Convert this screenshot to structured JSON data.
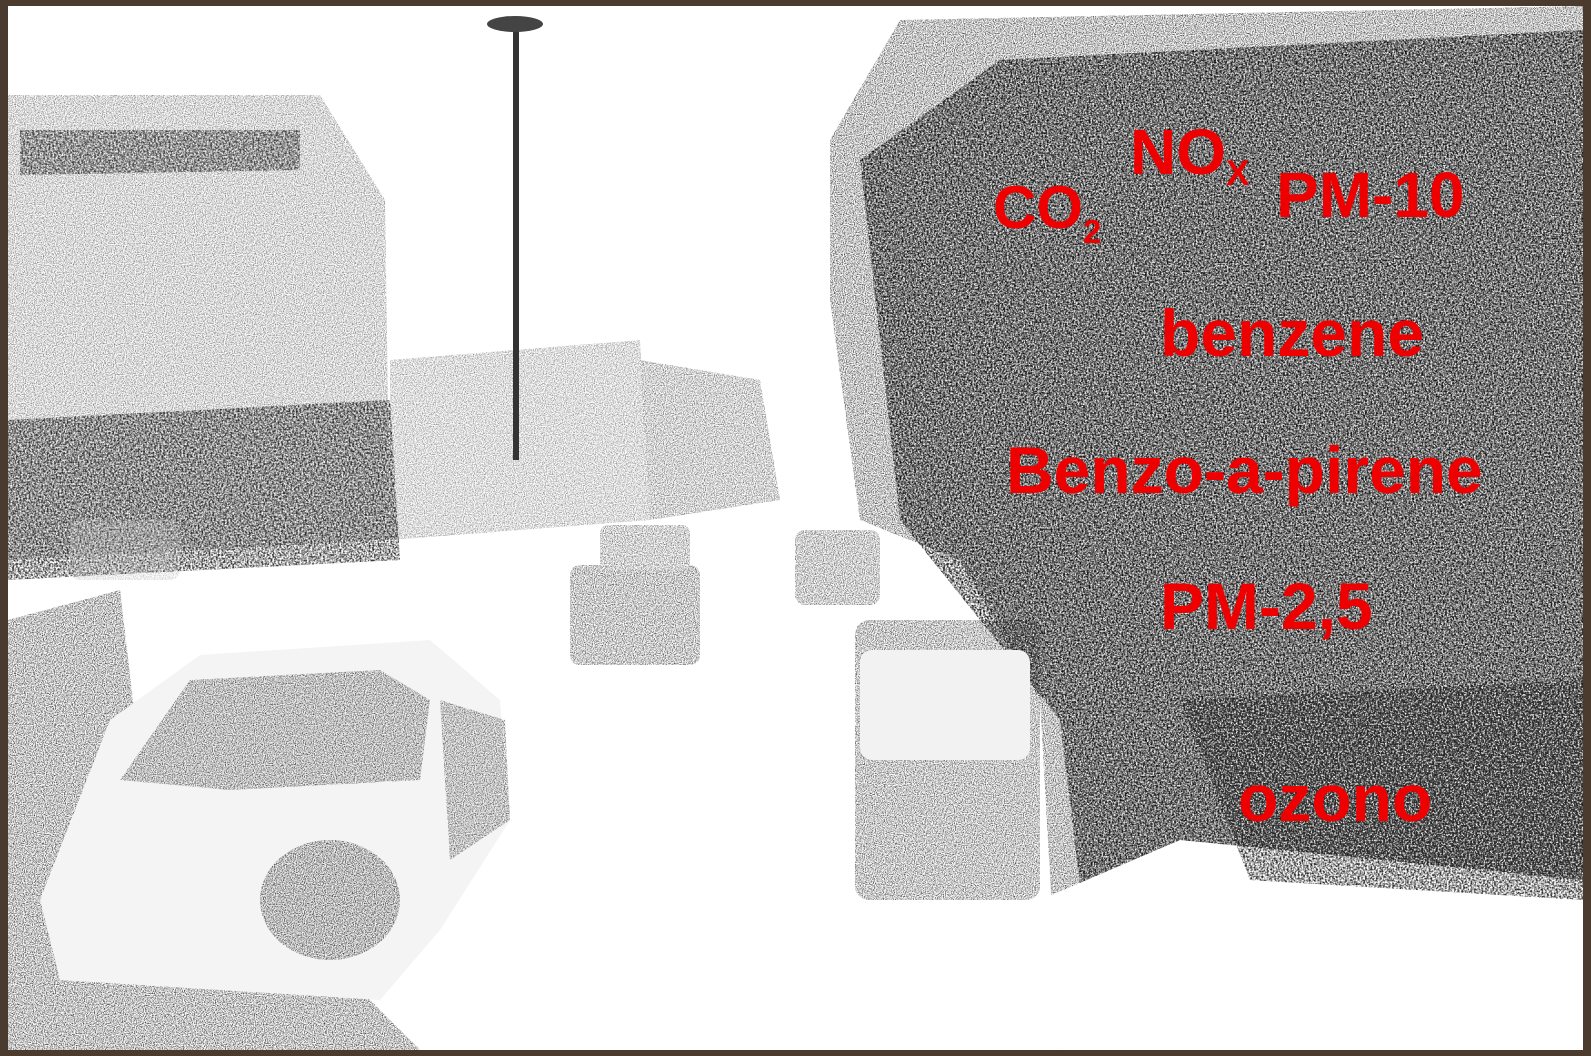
{
  "colors": {
    "text_red": "#ee0000",
    "frame_brown": "#4a3b2e",
    "sky": "#ffffff",
    "sketch_dark": "#1b1b1b"
  },
  "labels": {
    "co2_main": "CO",
    "co2_sub": "2",
    "nox_main": "NO",
    "nox_sub": "X",
    "pm10": "PM-10",
    "benzene": "benzene",
    "benzo": "Benzo-a-pirene",
    "pm25": "PM-2,5",
    "ozono": "ozono"
  }
}
